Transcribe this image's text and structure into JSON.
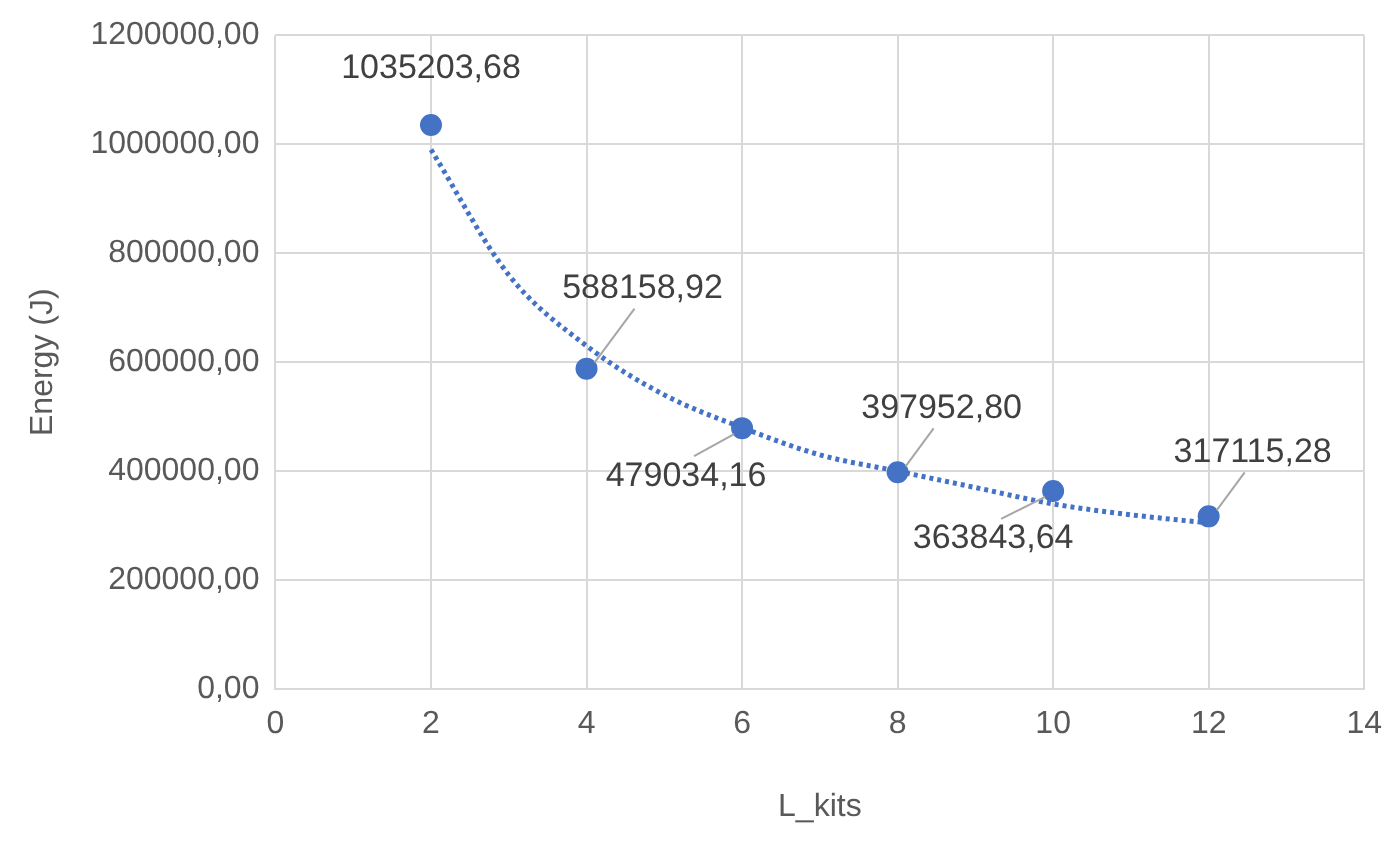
{
  "chart_data": {
    "type": "scatter",
    "xlabel": "L_kits",
    "ylabel": "Energy (J)",
    "xlim": [
      0,
      14
    ],
    "xticks": [
      0,
      2,
      4,
      6,
      8,
      10,
      12,
      14
    ],
    "ylim": [
      0,
      1200000
    ],
    "yticks": [
      {
        "value": 0,
        "label": "0,00"
      },
      {
        "value": 200000,
        "label": "200000,00"
      },
      {
        "value": 400000,
        "label": "400000,00"
      },
      {
        "value": 600000,
        "label": "600000,00"
      },
      {
        "value": 800000,
        "label": "800000,00"
      },
      {
        "value": 1000000,
        "label": "1000000,00"
      },
      {
        "value": 1200000,
        "label": "1200000,00"
      }
    ],
    "grid": true,
    "legend": false,
    "marker": "circle",
    "series": [
      {
        "color": "#4472c4",
        "x": [
          2,
          4,
          6,
          8,
          10,
          12
        ],
        "values": [
          1035203.68,
          588158.92,
          479034.16,
          397952.8,
          363843.64,
          317115.28
        ],
        "value_labels": [
          "1035203,68",
          "588158,92",
          "479034,16",
          "397952,80",
          "363843,64",
          "317115,28"
        ]
      },
      {
        "type": "line",
        "color": "#4472c4",
        "line_style": "dotted",
        "marker": "none",
        "x": [
          2,
          3,
          4,
          5,
          6,
          7,
          8,
          9,
          10,
          11,
          12
        ],
        "values": [
          990000,
          760000,
          630000,
          540000,
          480000,
          430000,
          400000,
          370000,
          340000,
          320000,
          305000
        ]
      }
    ]
  }
}
